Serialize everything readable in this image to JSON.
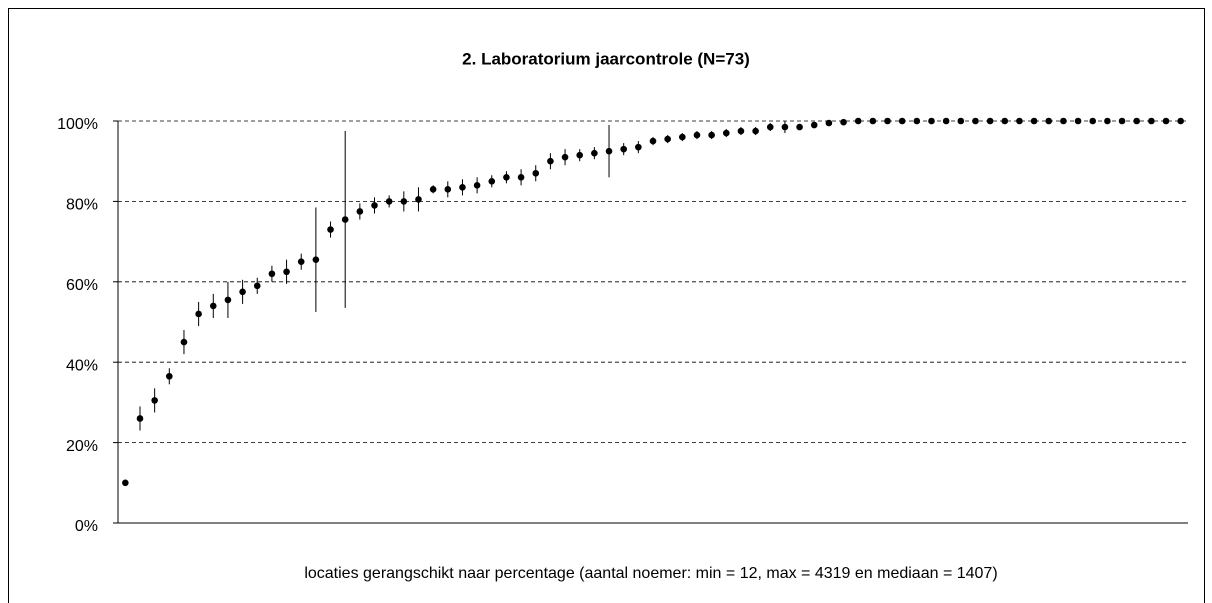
{
  "chart_data": {
    "type": "scatter",
    "title": "2. Laboratorium jaarcontrole (N=73)",
    "x_label": "locaties gerangschikt naar percentage (aantal noemer: min = 12, max = 4319 en mediaan = 1407)",
    "series": [
      {
        "color": "#000000",
        "values": [
          10,
          26,
          30.5,
          36.5,
          45,
          52,
          54,
          55.5,
          57.5,
          59,
          62,
          62.5,
          65,
          65.5,
          73,
          75.5,
          77.5,
          79,
          80,
          80,
          80.5,
          83,
          83,
          83.5,
          84,
          85,
          86,
          86,
          87,
          90,
          91,
          91.5,
          92,
          92.5,
          93,
          93.5,
          95,
          95.5,
          96,
          96.5,
          96.5,
          97,
          97.5,
          97.5,
          98.5,
          98.5,
          98.5,
          99,
          99.5,
          99.7,
          100,
          100,
          100,
          100,
          100,
          100,
          100,
          100,
          100,
          100,
          100,
          100,
          100,
          100,
          100,
          100,
          100,
          100,
          100,
          100,
          100,
          100,
          100
        ],
        "errors": [
          0.5,
          3,
          3,
          2,
          3,
          3,
          3,
          4.5,
          3,
          2,
          2,
          3,
          2,
          13,
          2,
          22,
          2,
          2,
          1.5,
          2.5,
          3,
          1,
          2,
          2,
          2,
          1.5,
          1.5,
          2,
          2,
          2,
          2,
          1.5,
          1.5,
          6.5,
          1.5,
          1.5,
          1,
          1,
          1,
          1,
          1,
          1,
          1,
          1,
          1,
          1.5,
          0.5,
          0.5,
          0.5,
          0.3,
          0,
          0,
          0,
          0,
          0,
          0,
          0,
          0,
          0,
          0,
          0,
          0,
          0,
          0,
          0,
          0,
          0,
          0,
          0,
          0,
          0,
          0,
          0
        ]
      }
    ],
    "ylim": [
      0,
      100
    ],
    "yticks": [
      {
        "value": 0,
        "label": "0%"
      },
      {
        "value": 20,
        "label": "20%"
      },
      {
        "value": 40,
        "label": "40%"
      },
      {
        "value": 60,
        "label": "60%"
      },
      {
        "value": 80,
        "label": "80%"
      },
      {
        "value": 100,
        "label": "100%"
      }
    ],
    "grid": true
  }
}
